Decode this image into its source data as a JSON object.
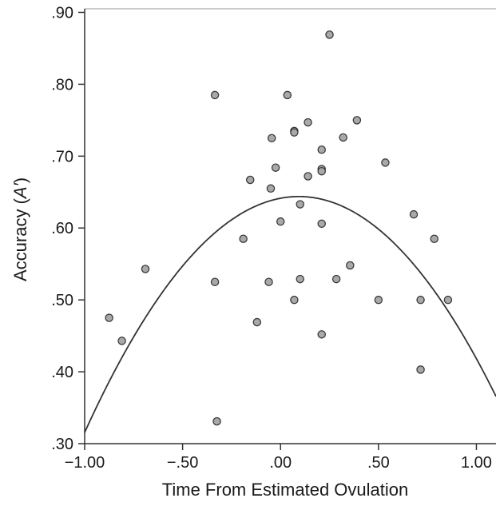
{
  "chart_data": {
    "type": "scatter",
    "xlabel": "Time From Estimated Ovulation",
    "ylabel_prefix": "Accuracy (",
    "ylabel_italic": "A′",
    "ylabel_suffix": ")",
    "xlim": [
      -1.0,
      1.1
    ],
    "ylim": [
      0.3,
      0.905
    ],
    "x_ticks": [
      {
        "value": -1.0,
        "label": "−1.00"
      },
      {
        "value": -0.5,
        "label": "−.50"
      },
      {
        "value": 0.0,
        "label": ".00"
      },
      {
        "value": 0.5,
        "label": ".50"
      },
      {
        "value": 1.0,
        "label": "1.00"
      }
    ],
    "y_ticks": [
      {
        "value": 0.3,
        "label": ".30"
      },
      {
        "value": 0.4,
        "label": ".40"
      },
      {
        "value": 0.5,
        "label": ".50"
      },
      {
        "value": 0.6,
        "label": ".60"
      },
      {
        "value": 0.7,
        "label": ".70"
      },
      {
        "value": 0.8,
        "label": ".80"
      },
      {
        "value": 0.9,
        "label": ".90"
      }
    ],
    "grid": false,
    "points": [
      {
        "x": -0.875,
        "y": 0.475
      },
      {
        "x": -0.81,
        "y": 0.443
      },
      {
        "x": -0.69,
        "y": 0.543
      },
      {
        "x": -0.335,
        "y": 0.785
      },
      {
        "x": -0.335,
        "y": 0.525
      },
      {
        "x": -0.325,
        "y": 0.331
      },
      {
        "x": -0.19,
        "y": 0.585
      },
      {
        "x": -0.155,
        "y": 0.667
      },
      {
        "x": -0.12,
        "y": 0.469
      },
      {
        "x": -0.06,
        "y": 0.525
      },
      {
        "x": -0.05,
        "y": 0.655
      },
      {
        "x": -0.045,
        "y": 0.725
      },
      {
        "x": -0.025,
        "y": 0.684
      },
      {
        "x": 0.0,
        "y": 0.609
      },
      {
        "x": 0.035,
        "y": 0.785
      },
      {
        "x": 0.07,
        "y": 0.735
      },
      {
        "x": 0.07,
        "y": 0.733
      },
      {
        "x": 0.07,
        "y": 0.5
      },
      {
        "x": 0.1,
        "y": 0.633
      },
      {
        "x": 0.1,
        "y": 0.529
      },
      {
        "x": 0.14,
        "y": 0.747
      },
      {
        "x": 0.14,
        "y": 0.672
      },
      {
        "x": 0.21,
        "y": 0.709
      },
      {
        "x": 0.21,
        "y": 0.682
      },
      {
        "x": 0.21,
        "y": 0.679
      },
      {
        "x": 0.21,
        "y": 0.606
      },
      {
        "x": 0.21,
        "y": 0.452
      },
      {
        "x": 0.25,
        "y": 0.869
      },
      {
        "x": 0.285,
        "y": 0.529
      },
      {
        "x": 0.32,
        "y": 0.726
      },
      {
        "x": 0.355,
        "y": 0.548
      },
      {
        "x": 0.39,
        "y": 0.75
      },
      {
        "x": 0.5,
        "y": 0.5
      },
      {
        "x": 0.535,
        "y": 0.691
      },
      {
        "x": 0.68,
        "y": 0.619
      },
      {
        "x": 0.715,
        "y": 0.5
      },
      {
        "x": 0.715,
        "y": 0.403
      },
      {
        "x": 0.785,
        "y": 0.585
      },
      {
        "x": 0.855,
        "y": 0.5
      }
    ],
    "fit": {
      "type": "quadratic",
      "a": -0.2745,
      "b": 0.0513,
      "c": 0.6414
    }
  }
}
